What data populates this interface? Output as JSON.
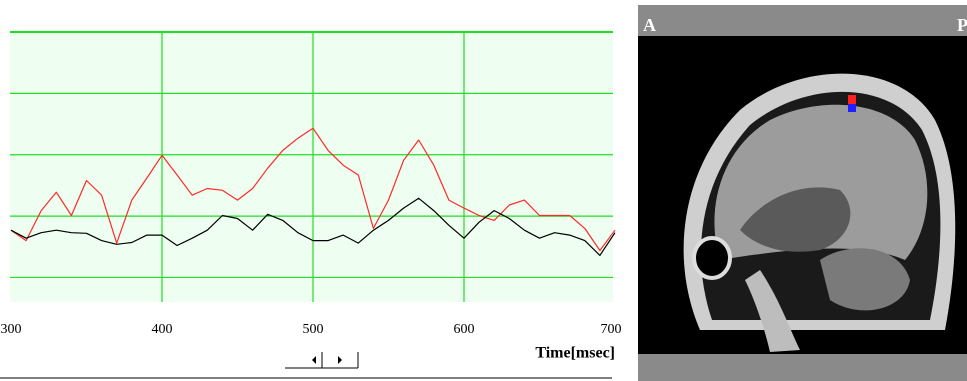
{
  "chart_data": {
    "type": "line",
    "xlabel": "Time[msec]",
    "x": [
      300,
      310,
      320,
      330,
      340,
      350,
      360,
      370,
      380,
      390,
      400,
      410,
      420,
      430,
      440,
      450,
      460,
      470,
      480,
      490,
      500,
      510,
      520,
      530,
      540,
      550,
      560,
      570,
      580,
      590,
      600,
      610,
      620,
      630,
      640,
      650,
      660,
      670,
      680,
      690,
      700
    ],
    "series": [
      {
        "color": "#ff2a2a",
        "values": [
          0.77,
          0.6,
          1.09,
          1.39,
          1.01,
          1.58,
          1.34,
          0.56,
          1.26,
          1.62,
          1.99,
          1.67,
          1.34,
          1.45,
          1.42,
          1.26,
          1.45,
          1.78,
          2.07,
          2.27,
          2.43,
          2.07,
          1.83,
          1.67,
          0.8,
          1.26,
          1.91,
          2.24,
          1.83,
          1.26,
          1.13,
          1.01,
          0.93,
          1.18,
          1.26,
          1.01,
          1.01,
          1.01,
          0.8,
          0.44,
          0.77
        ]
      },
      {
        "color": "#000000",
        "values": [
          0.77,
          0.64,
          0.73,
          0.77,
          0.73,
          0.72,
          0.6,
          0.54,
          0.57,
          0.69,
          0.69,
          0.52,
          0.64,
          0.77,
          1.01,
          0.96,
          0.77,
          1.03,
          0.93,
          0.73,
          0.6,
          0.6,
          0.69,
          0.56,
          0.77,
          0.93,
          1.13,
          1.29,
          1.09,
          0.85,
          0.64,
          0.9,
          1.09,
          0.96,
          0.77,
          0.64,
          0.73,
          0.69,
          0.6,
          0.36,
          0.73
        ]
      }
    ],
    "xlim": [
      300,
      700
    ],
    "xticks": [
      300,
      400,
      500,
      600,
      700
    ],
    "ylim": [
      -0.4,
      4
    ],
    "yticks": [
      0,
      1,
      2,
      3,
      4
    ],
    "grid": true
  },
  "image_labels": {
    "left": "A",
    "right": "P"
  }
}
